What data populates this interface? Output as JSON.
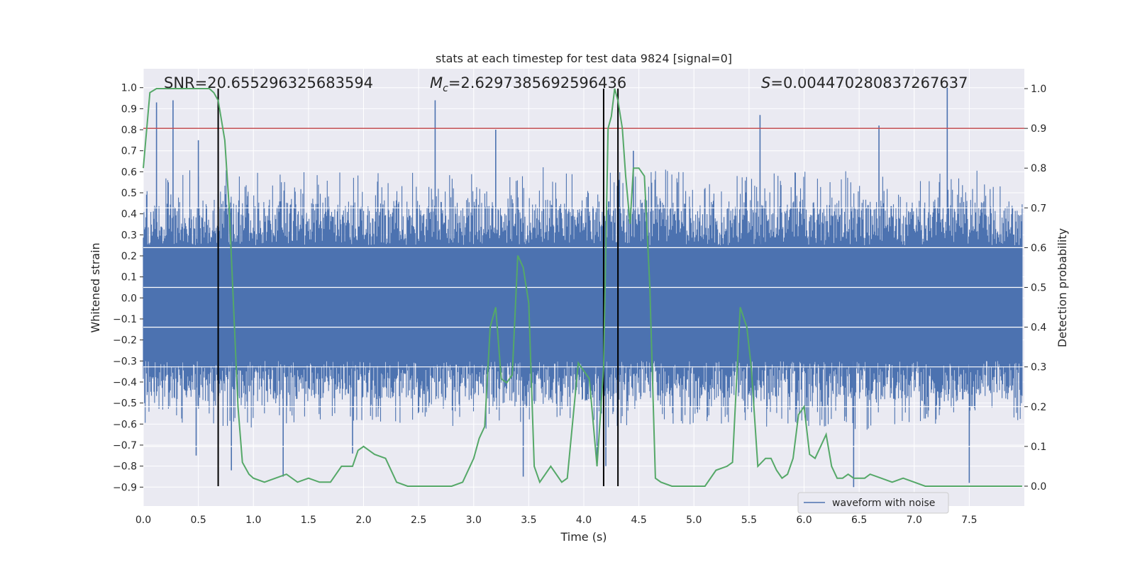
{
  "chart_data": {
    "type": "line",
    "title": "stats at each timestep for test data 9824 [signal=0]",
    "xlabel": "Time (s)",
    "ylabel_left": "Whitened strain",
    "ylabel_right": "Detection probability",
    "xlim": [
      0.0,
      8.0
    ],
    "ylim_left": [
      -0.99,
      1.09
    ],
    "ylim_right": [
      -0.05,
      1.05
    ],
    "x_ticks": [
      "0.0",
      "0.5",
      "1.0",
      "1.5",
      "2.0",
      "2.5",
      "3.0",
      "3.5",
      "4.0",
      "4.5",
      "5.0",
      "5.5",
      "6.0",
      "6.5",
      "7.0",
      "7.5"
    ],
    "y_ticks_left": [
      "−0.9",
      "−0.8",
      "−0.7",
      "−0.6",
      "−0.5",
      "−0.4",
      "−0.3",
      "−0.2",
      "−0.1",
      "0.0",
      "0.1",
      "0.2",
      "0.3",
      "0.4",
      "0.5",
      "0.6",
      "0.7",
      "0.8",
      "0.9",
      "1.0"
    ],
    "y_ticks_right": [
      "0.0",
      "0.1",
      "0.2",
      "0.3",
      "0.4",
      "0.5",
      "0.6",
      "0.7",
      "0.8",
      "0.9",
      "1.0"
    ],
    "annotations": {
      "snr": "SNR=20.655296325683594",
      "mc_symbol": "M",
      "mc_sub": "c",
      "mc_value": "=2.6297385692596436",
      "s_symbol": "S",
      "s_value": "=0.004470280837267637"
    },
    "threshold": {
      "axis": "right",
      "value": 0.9,
      "color": "#c44e52"
    },
    "vertical_lines": [
      0.68,
      4.18,
      4.31
    ],
    "legend": {
      "label": "waveform with noise",
      "location": "lower-right"
    },
    "series": [
      {
        "name": "waveform with noise",
        "axis": "left",
        "color": "#4c72b0",
        "kind": "noise-envelope",
        "x": [
          0.0,
          0.5,
          1.0,
          1.5,
          2.0,
          2.5,
          3.0,
          3.5,
          4.0,
          4.5,
          5.0,
          5.5,
          6.0,
          6.5,
          7.0,
          7.5,
          7.98
        ],
        "upper": [
          0.55,
          0.62,
          0.6,
          0.6,
          0.6,
          0.62,
          0.62,
          0.64,
          0.6,
          0.62,
          0.6,
          0.6,
          0.6,
          0.62,
          0.6,
          0.62,
          0.55
        ],
        "lower": [
          -0.6,
          -0.62,
          -0.62,
          -0.6,
          -0.6,
          -0.6,
          -0.62,
          -0.66,
          -0.62,
          -0.62,
          -0.6,
          -0.62,
          -0.62,
          -0.64,
          -0.62,
          -0.62,
          -0.6
        ],
        "spikes_up": [
          [
            0.12,
            0.93
          ],
          [
            0.27,
            0.94
          ],
          [
            0.5,
            0.75
          ],
          [
            2.65,
            0.94
          ],
          [
            3.2,
            0.8
          ],
          [
            5.6,
            0.87
          ],
          [
            6.68,
            0.82
          ],
          [
            7.3,
            1.0
          ],
          [
            4.45,
            0.7
          ]
        ],
        "spikes_down": [
          [
            0.48,
            -0.75
          ],
          [
            0.8,
            -0.82
          ],
          [
            1.27,
            -0.85
          ],
          [
            3.45,
            -0.85
          ],
          [
            4.12,
            -0.78
          ],
          [
            4.2,
            -0.8
          ],
          [
            6.45,
            -0.9
          ],
          [
            7.5,
            -0.88
          ],
          [
            1.9,
            -0.74
          ]
        ]
      },
      {
        "name": "detection probability",
        "axis": "right",
        "color": "#55a868",
        "x": [
          0.0,
          0.06,
          0.12,
          0.2,
          0.3,
          0.4,
          0.5,
          0.6,
          0.64,
          0.68,
          0.74,
          0.78,
          0.82,
          0.86,
          0.9,
          0.96,
          1.0,
          1.1,
          1.2,
          1.3,
          1.4,
          1.5,
          1.6,
          1.7,
          1.8,
          1.9,
          1.95,
          2.0,
          2.1,
          2.2,
          2.3,
          2.4,
          2.5,
          2.6,
          2.7,
          2.8,
          2.9,
          3.0,
          3.05,
          3.1,
          3.15,
          3.2,
          3.25,
          3.3,
          3.35,
          3.4,
          3.45,
          3.5,
          3.55,
          3.6,
          3.7,
          3.8,
          3.85,
          3.95,
          4.05,
          4.12,
          4.18,
          4.22,
          4.25,
          4.28,
          4.31,
          4.35,
          4.38,
          4.42,
          4.45,
          4.5,
          4.55,
          4.6,
          4.65,
          4.7,
          4.8,
          4.9,
          5.0,
          5.1,
          5.2,
          5.3,
          5.35,
          5.42,
          5.48,
          5.52,
          5.58,
          5.65,
          5.7,
          5.75,
          5.8,
          5.85,
          5.9,
          5.95,
          6.0,
          6.05,
          6.1,
          6.15,
          6.2,
          6.25,
          6.3,
          6.35,
          6.4,
          6.45,
          6.5,
          6.55,
          6.6,
          6.7,
          6.8,
          6.9,
          7.0,
          7.1,
          7.2,
          7.3,
          7.5,
          7.7,
          7.98
        ],
        "values": [
          0.8,
          0.99,
          1.0,
          1.0,
          1.0,
          1.0,
          1.0,
          1.0,
          0.99,
          0.97,
          0.87,
          0.7,
          0.45,
          0.2,
          0.06,
          0.03,
          0.02,
          0.01,
          0.02,
          0.03,
          0.01,
          0.02,
          0.01,
          0.01,
          0.05,
          0.05,
          0.09,
          0.1,
          0.08,
          0.07,
          0.01,
          0.0,
          0.0,
          0.0,
          0.0,
          0.0,
          0.01,
          0.07,
          0.12,
          0.15,
          0.4,
          0.45,
          0.27,
          0.26,
          0.28,
          0.58,
          0.55,
          0.46,
          0.05,
          0.01,
          0.05,
          0.01,
          0.02,
          0.31,
          0.27,
          0.05,
          0.3,
          0.9,
          0.93,
          1.0,
          0.97,
          0.9,
          0.78,
          0.66,
          0.8,
          0.8,
          0.78,
          0.5,
          0.02,
          0.01,
          0.0,
          0.0,
          0.0,
          0.0,
          0.04,
          0.05,
          0.06,
          0.45,
          0.4,
          0.3,
          0.05,
          0.07,
          0.07,
          0.04,
          0.02,
          0.03,
          0.07,
          0.18,
          0.2,
          0.08,
          0.07,
          0.1,
          0.13,
          0.05,
          0.02,
          0.02,
          0.03,
          0.02,
          0.02,
          0.02,
          0.03,
          0.02,
          0.01,
          0.02,
          0.01,
          0.0,
          0.0,
          0.0,
          0.0,
          0.0,
          0.0
        ]
      }
    ]
  }
}
